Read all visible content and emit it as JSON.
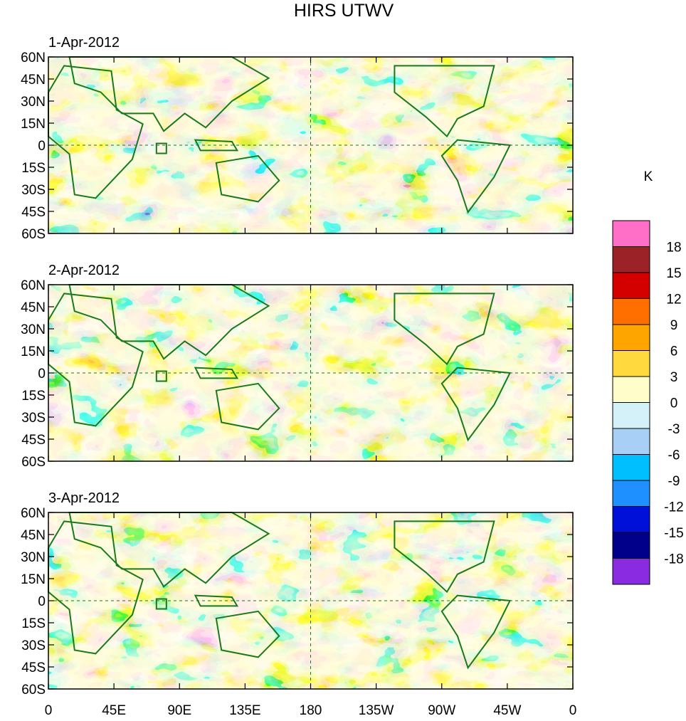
{
  "title": "HIRS UTWV",
  "panels": [
    {
      "date": "1-Apr-2012"
    },
    {
      "date": "2-Apr-2012"
    },
    {
      "date": "3-Apr-2012"
    }
  ],
  "lat_labels": [
    "60N",
    "45N",
    "30N",
    "15N",
    "0",
    "15S",
    "30S",
    "45S",
    "60S"
  ],
  "lon_labels": [
    "0",
    "45E",
    "90E",
    "135E",
    "180",
    "135W",
    "90W",
    "45W",
    "0"
  ],
  "colorbar": {
    "unit": "K",
    "labels": [
      "18",
      "15",
      "12",
      "9",
      "6",
      "3",
      "0",
      "-3",
      "-6",
      "-9",
      "-12",
      "-15",
      "-18"
    ],
    "colors": [
      "#ff6ec7",
      "#9b2226",
      "#d40000",
      "#ff6f00",
      "#ffa500",
      "#ffd93d",
      "#fffdc9",
      "#d4f1fa",
      "#a8cff5",
      "#00bfff",
      "#1e90ff",
      "#0010d8",
      "#00008b",
      "#8a2be2"
    ]
  },
  "colors": {
    "land_outline": "#1a7a1a",
    "grid_dash": "#1a7a1a"
  }
}
